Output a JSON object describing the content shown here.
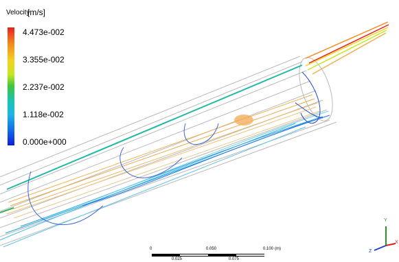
{
  "legend": {
    "title": "Velocity",
    "unit": "[m/s]",
    "ticks": [
      "4.473e-002",
      "3.355e-002",
      "2.237e-002",
      "1.118e-002",
      "0.000e+000"
    ],
    "scale_min": 0.0,
    "scale_max": 0.04473,
    "colors": [
      "#0a1fd6",
      "#1266ea",
      "#1ab6e6",
      "#16c5b4",
      "#3cc53d",
      "#c4e822",
      "#f5d21d",
      "#f58a1c",
      "#e8201e"
    ]
  },
  "scale_bar": {
    "top_labels": [
      "0",
      "0.050",
      "0.100",
      "(m)"
    ],
    "bottom_labels": [
      "0.025",
      "0.075"
    ]
  },
  "axes_triad": {
    "x": "X",
    "y": "Y",
    "z": "Z",
    "x_color": "#d62020",
    "y_color": "#1e9a1e",
    "z_color": "#1f3fd6"
  },
  "geometry": {
    "outline_color": "#b9b9b9"
  }
}
